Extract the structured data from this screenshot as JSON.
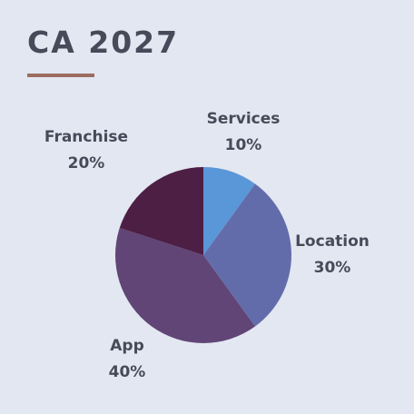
{
  "page": {
    "title": "CA 2027",
    "accent_color": "#9c6c5f",
    "background_color": "#e3e7f1"
  },
  "chart_data": {
    "type": "pie",
    "title": "CA 2027",
    "start_angle_deg": 0,
    "direction": "clockwise",
    "slices": [
      {
        "label": "Services",
        "value": 10,
        "value_label": "10%",
        "color": "#5a97d8"
      },
      {
        "label": "Location",
        "value": 30,
        "value_label": "30%",
        "color": "#636cab"
      },
      {
        "label": "App",
        "value": 40,
        "value_label": "40%",
        "color": "#614577"
      },
      {
        "label": "Franchise",
        "value": 20,
        "value_label": "20%",
        "color": "#4d1f45"
      }
    ]
  }
}
